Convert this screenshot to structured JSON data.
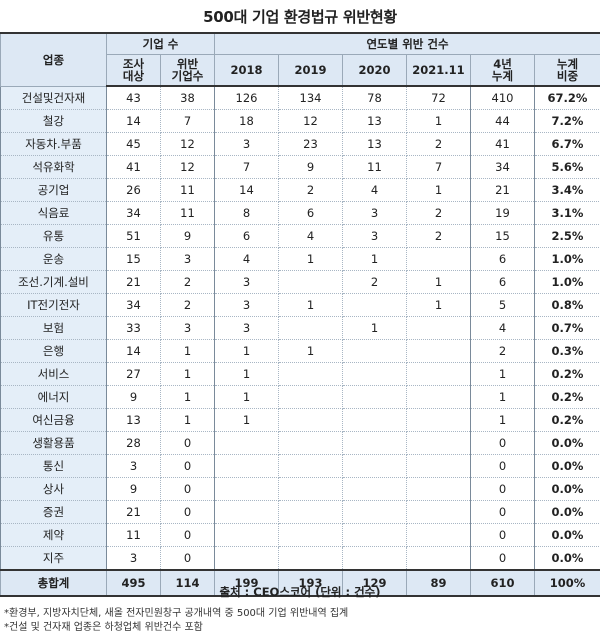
{
  "title": "500대 기업 환경법규 위반현황",
  "header": {
    "industry": "업종",
    "group_companies": "기업 수",
    "group_years": "연도별 위반 건수",
    "surveyed": [
      "조사",
      "대상"
    ],
    "violators": [
      "위반",
      "기업수"
    ],
    "years": [
      "2018",
      "2019",
      "2020",
      "2021.11"
    ],
    "cumulative4": [
      "4년",
      "누계"
    ],
    "share": [
      "누계",
      "비중"
    ]
  },
  "rows": [
    {
      "industry": "건설및건자재",
      "surveyed": "43",
      "violators": "38",
      "y2018": "126",
      "y2019": "134",
      "y2020": "78",
      "y2021": "72",
      "total": "410",
      "share": "67.2%"
    },
    {
      "industry": "철강",
      "surveyed": "14",
      "violators": "7",
      "y2018": "18",
      "y2019": "12",
      "y2020": "13",
      "y2021": "1",
      "total": "44",
      "share": "7.2%"
    },
    {
      "industry": "자동차.부품",
      "surveyed": "45",
      "violators": "12",
      "y2018": "3",
      "y2019": "23",
      "y2020": "13",
      "y2021": "2",
      "total": "41",
      "share": "6.7%"
    },
    {
      "industry": "석유화학",
      "surveyed": "41",
      "violators": "12",
      "y2018": "7",
      "y2019": "9",
      "y2020": "11",
      "y2021": "7",
      "total": "34",
      "share": "5.6%"
    },
    {
      "industry": "공기업",
      "surveyed": "26",
      "violators": "11",
      "y2018": "14",
      "y2019": "2",
      "y2020": "4",
      "y2021": "1",
      "total": "21",
      "share": "3.4%"
    },
    {
      "industry": "식음료",
      "surveyed": "34",
      "violators": "11",
      "y2018": "8",
      "y2019": "6",
      "y2020": "3",
      "y2021": "2",
      "total": "19",
      "share": "3.1%"
    },
    {
      "industry": "유통",
      "surveyed": "51",
      "violators": "9",
      "y2018": "6",
      "y2019": "4",
      "y2020": "3",
      "y2021": "2",
      "total": "15",
      "share": "2.5%"
    },
    {
      "industry": "운송",
      "surveyed": "15",
      "violators": "3",
      "y2018": "4",
      "y2019": "1",
      "y2020": "1",
      "y2021": "",
      "total": "6",
      "share": "1.0%"
    },
    {
      "industry": "조선.기계.설비",
      "surveyed": "21",
      "violators": "2",
      "y2018": "3",
      "y2019": "",
      "y2020": "2",
      "y2021": "1",
      "total": "6",
      "share": "1.0%"
    },
    {
      "industry": "IT전기전자",
      "surveyed": "34",
      "violators": "2",
      "y2018": "3",
      "y2019": "1",
      "y2020": "",
      "y2021": "1",
      "total": "5",
      "share": "0.8%"
    },
    {
      "industry": "보험",
      "surveyed": "33",
      "violators": "3",
      "y2018": "3",
      "y2019": "",
      "y2020": "1",
      "y2021": "",
      "total": "4",
      "share": "0.7%"
    },
    {
      "industry": "은행",
      "surveyed": "14",
      "violators": "1",
      "y2018": "1",
      "y2019": "1",
      "y2020": "",
      "y2021": "",
      "total": "2",
      "share": "0.3%"
    },
    {
      "industry": "서비스",
      "surveyed": "27",
      "violators": "1",
      "y2018": "1",
      "y2019": "",
      "y2020": "",
      "y2021": "",
      "total": "1",
      "share": "0.2%"
    },
    {
      "industry": "에너지",
      "surveyed": "9",
      "violators": "1",
      "y2018": "1",
      "y2019": "",
      "y2020": "",
      "y2021": "",
      "total": "1",
      "share": "0.2%"
    },
    {
      "industry": "여신금융",
      "surveyed": "13",
      "violators": "1",
      "y2018": "1",
      "y2019": "",
      "y2020": "",
      "y2021": "",
      "total": "1",
      "share": "0.2%"
    },
    {
      "industry": "생활용품",
      "surveyed": "28",
      "violators": "0",
      "y2018": "",
      "y2019": "",
      "y2020": "",
      "y2021": "",
      "total": "0",
      "share": "0.0%"
    },
    {
      "industry": "통신",
      "surveyed": "3",
      "violators": "0",
      "y2018": "",
      "y2019": "",
      "y2020": "",
      "y2021": "",
      "total": "0",
      "share": "0.0%"
    },
    {
      "industry": "상사",
      "surveyed": "9",
      "violators": "0",
      "y2018": "",
      "y2019": "",
      "y2020": "",
      "y2021": "",
      "total": "0",
      "share": "0.0%"
    },
    {
      "industry": "증권",
      "surveyed": "21",
      "violators": "0",
      "y2018": "",
      "y2019": "",
      "y2020": "",
      "y2021": "",
      "total": "0",
      "share": "0.0%"
    },
    {
      "industry": "제약",
      "surveyed": "11",
      "violators": "0",
      "y2018": "",
      "y2019": "",
      "y2020": "",
      "y2021": "",
      "total": "0",
      "share": "0.0%"
    },
    {
      "industry": "지주",
      "surveyed": "3",
      "violators": "0",
      "y2018": "",
      "y2019": "",
      "y2020": "",
      "y2021": "",
      "total": "0",
      "share": "0.0%"
    }
  ],
  "totals": {
    "industry": "총합계",
    "surveyed": "495",
    "violators": "114",
    "y2018": "199",
    "y2019": "193",
    "y2020": "129",
    "y2021": "89",
    "total": "610",
    "share": "100%"
  },
  "source": "출처 : CEO스코어 (단위 : 건수)",
  "notes": [
    "*환경부, 지방자치단체, 새올 전자민원창구 공개내역 중 500대 기업 위반내역 집계",
    "*건설 및 건자재 업종은 하청업체 위반건수 포함"
  ]
}
